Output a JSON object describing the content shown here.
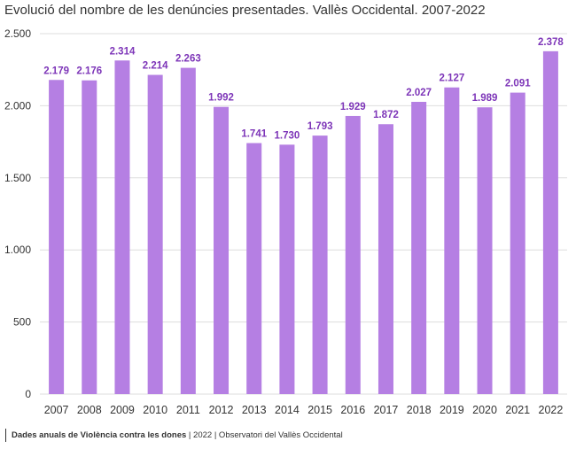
{
  "chart_data": {
    "type": "bar",
    "title": "Evolució del nombre de les denúncies presentades. Vallès Occidental. 2007-2022",
    "categories": [
      "2007",
      "2008",
      "2009",
      "2010",
      "2011",
      "2012",
      "2013",
      "2014",
      "2015",
      "2016",
      "2017",
      "2018",
      "2019",
      "2020",
      "2021",
      "2022"
    ],
    "values": [
      2179,
      2176,
      2314,
      2214,
      2263,
      1992,
      1741,
      1730,
      1793,
      1929,
      1872,
      2027,
      2127,
      1989,
      2091,
      2378
    ],
    "value_labels": [
      "2.179",
      "2.176",
      "2.314",
      "2.214",
      "2.263",
      "1.992",
      "1.741",
      "1.730",
      "1.793",
      "1.929",
      "1.872",
      "2.027",
      "2.127",
      "1.989",
      "2.091",
      "2.378"
    ],
    "ylim": [
      0,
      2500
    ],
    "yticks": [
      0,
      500,
      1000,
      1500,
      2000,
      2500
    ],
    "ytick_labels": [
      "0",
      "500",
      "1.000",
      "1.500",
      "2.000",
      "2.500"
    ],
    "xlabel": "",
    "ylabel": "",
    "grid": true,
    "colors": {
      "bar": "#b57fe3",
      "label": "#7d35b8",
      "grid": "#dddddd",
      "axis_text": "#333333"
    }
  },
  "footer": {
    "source_bold": "Dades anuals de Violència contra les dones",
    "source_rest": " | 2022 | Observatori del Vallès Occidental"
  }
}
